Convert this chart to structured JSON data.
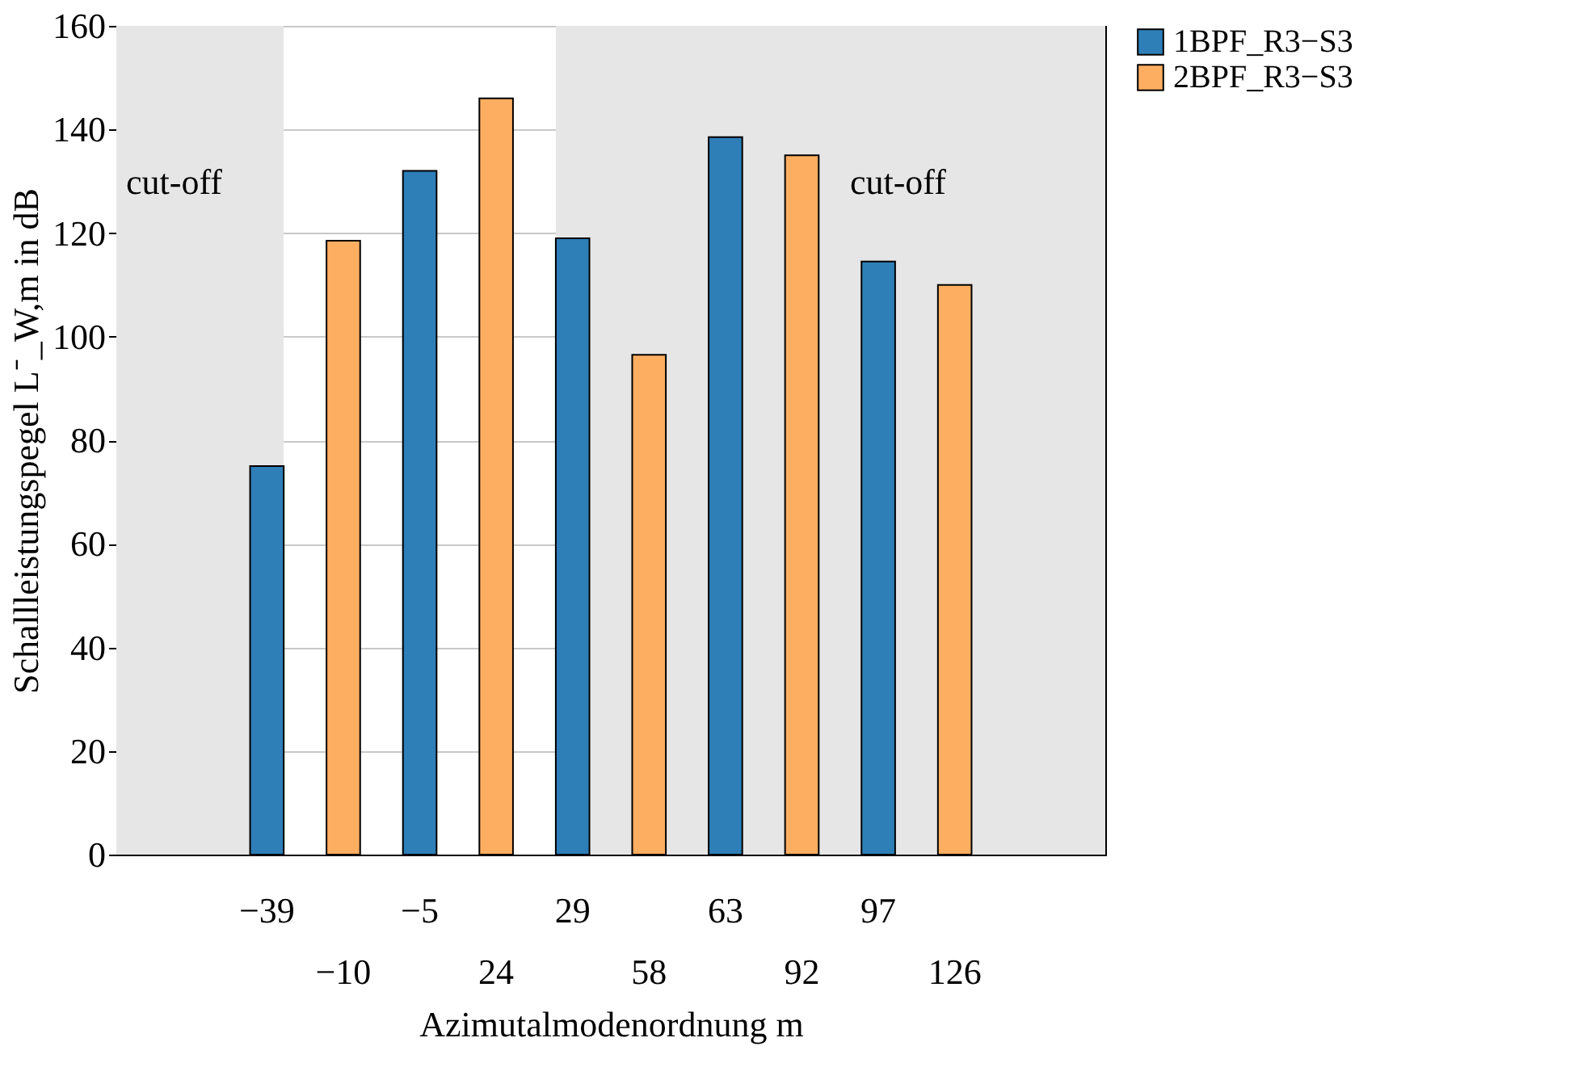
{
  "chart_data": {
    "type": "bar",
    "xlabel": "Azimutalmodenordnung m",
    "ylabel": "Schallleistungspegel L⁻_W,m in dB",
    "categories": [
      "−39",
      "−10",
      "−5",
      "24",
      "29",
      "58",
      "63",
      "92",
      "97",
      "126"
    ],
    "series": [
      {
        "name": "1BPF_R3−S3",
        "color": "#2e7fb8",
        "values": [
          75,
          null,
          132,
          null,
          119,
          null,
          138.5,
          null,
          114.5,
          null
        ]
      },
      {
        "name": "2BPF_R3−S3",
        "color": "#fdae61",
        "values": [
          null,
          118.5,
          null,
          146,
          null,
          96.5,
          null,
          135,
          null,
          110
        ]
      }
    ],
    "bands": [
      {
        "axis": "x",
        "from": "−39",
        "to": "−39",
        "label": "cut-off",
        "color": "#e6e6e6"
      },
      {
        "axis": "x",
        "from": "29",
        "to": "126",
        "label": "cut-off",
        "color": "#e6e6e6"
      }
    ],
    "ylim": [
      0,
      160
    ],
    "yticks": [
      0,
      20,
      40,
      60,
      80,
      100,
      120,
      140,
      160
    ],
    "grid": "y",
    "legend": "top right"
  }
}
